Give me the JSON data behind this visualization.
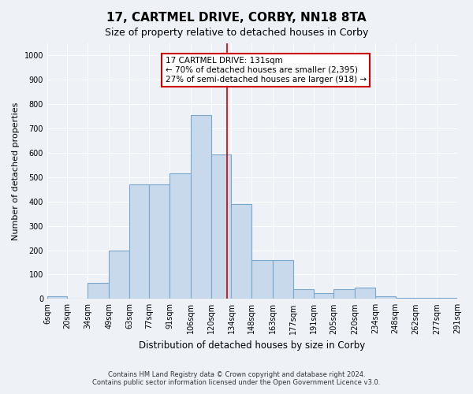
{
  "title": "17, CARTMEL DRIVE, CORBY, NN18 8TA",
  "subtitle": "Size of property relative to detached houses in Corby",
  "xlabel": "Distribution of detached houses by size in Corby",
  "ylabel": "Number of detached properties",
  "footnote1": "Contains HM Land Registry data © Crown copyright and database right 2024.",
  "footnote2": "Contains public sector information licensed under the Open Government Licence v3.0.",
  "annotation_line1": "17 CARTMEL DRIVE: 131sqm",
  "annotation_line2": "← 70% of detached houses are smaller (2,395)",
  "annotation_line3": "27% of semi-detached houses are larger (918) →",
  "bin_edges": [
    6,
    20,
    34,
    49,
    63,
    77,
    91,
    106,
    120,
    134,
    148,
    163,
    177,
    191,
    205,
    220,
    234,
    248,
    262,
    277,
    291
  ],
  "bin_labels": [
    "6sqm",
    "20sqm",
    "34sqm",
    "49sqm",
    "63sqm",
    "77sqm",
    "91sqm",
    "106sqm",
    "120sqm",
    "134sqm",
    "148sqm",
    "163sqm",
    "177sqm",
    "191sqm",
    "205sqm",
    "220sqm",
    "234sqm",
    "248sqm",
    "262sqm",
    "277sqm",
    "291sqm"
  ],
  "bar_heights": [
    10,
    0,
    65,
    200,
    470,
    470,
    515,
    755,
    595,
    390,
    160,
    160,
    40,
    25,
    40,
    45,
    10,
    5,
    5,
    5
  ],
  "bar_color": "#c8d9ec",
  "bar_edge_color": "#7aa8cc",
  "vline_x": 131,
  "vline_color": "#cc0000",
  "ylim": [
    0,
    1050
  ],
  "yticks": [
    0,
    100,
    200,
    300,
    400,
    500,
    600,
    700,
    800,
    900,
    1000
  ],
  "background_color": "#eef2f7",
  "grid_color": "#ffffff",
  "annotation_box_color": "#cc0000",
  "title_fontsize": 11,
  "subtitle_fontsize": 9,
  "ylabel_fontsize": 8,
  "xlabel_fontsize": 8.5,
  "tick_fontsize": 7,
  "annotation_fontsize": 7.5,
  "footnote_fontsize": 6
}
